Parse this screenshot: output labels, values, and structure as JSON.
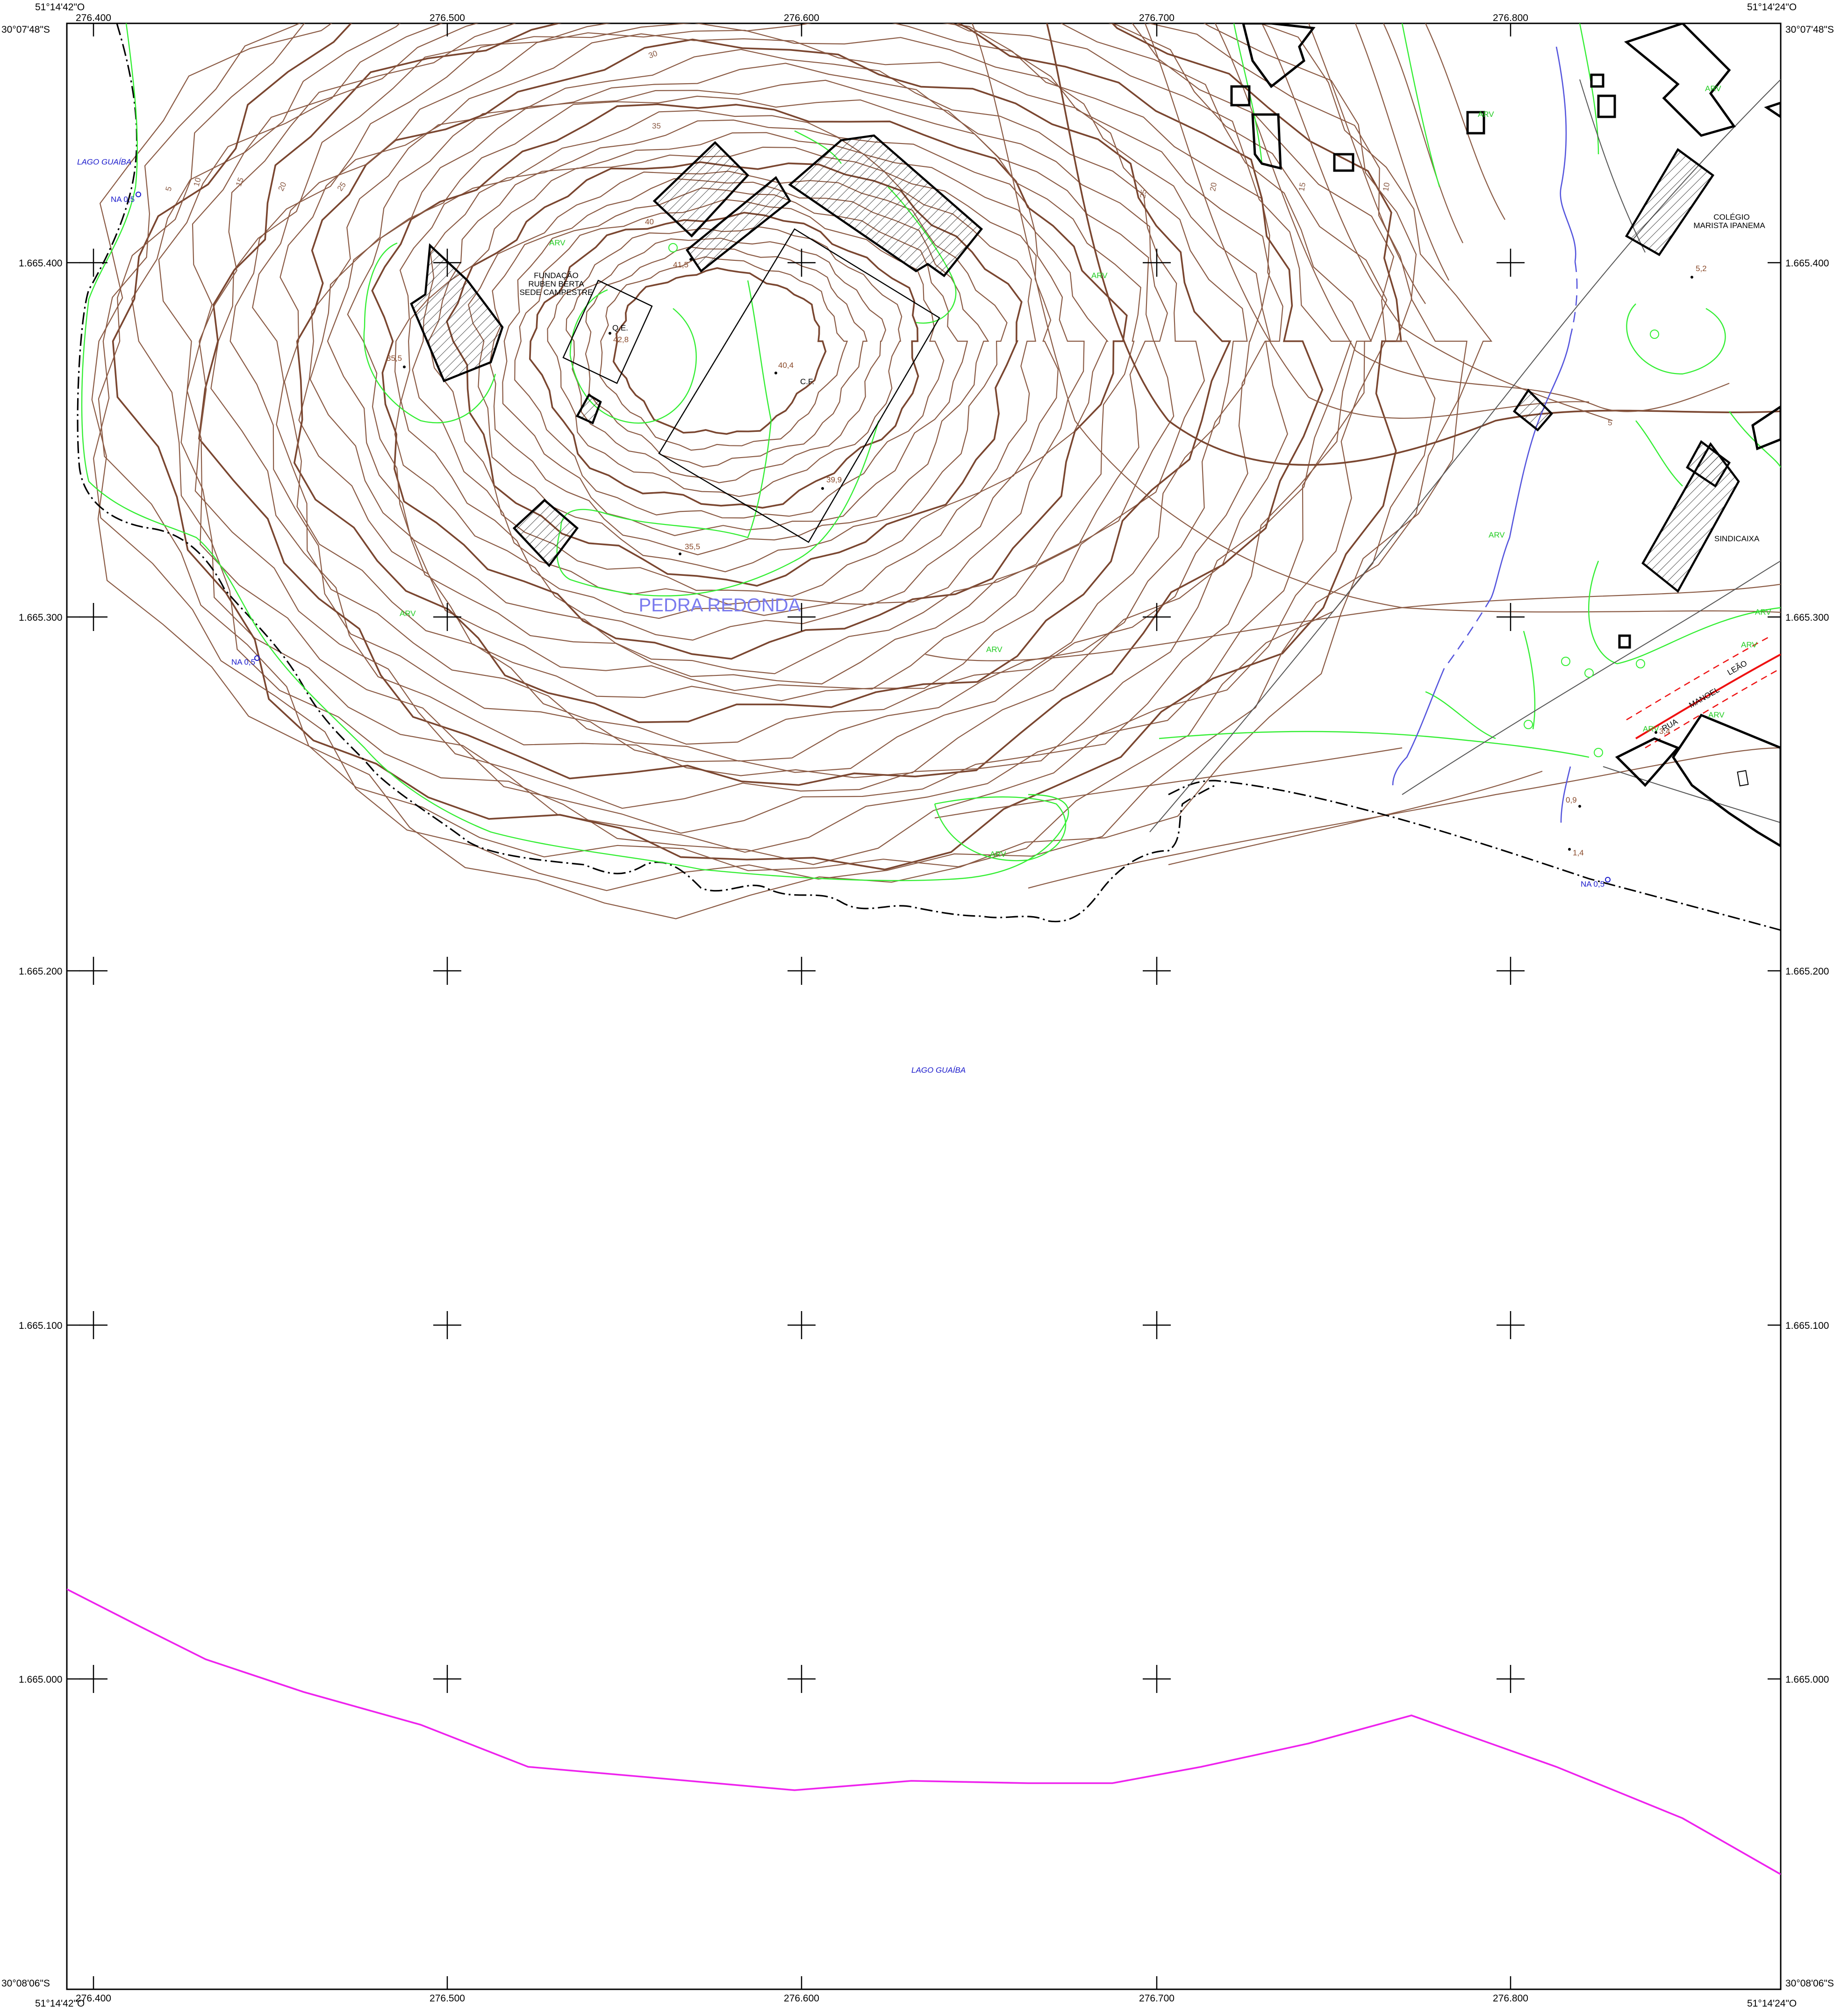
{
  "map": {
    "place_name": "PEDRA REDONDA",
    "corners": {
      "top_left_lon": "51°14'42\"O",
      "top_left_lat": "30°07'48\"S",
      "top_right_lon": "51°14'24\"O",
      "top_right_lat": "30°07'48\"S",
      "bottom_left_lat": "30°08'06\"S",
      "bottom_left_lon": "51°14'42\"O",
      "bottom_right_lat": "30°08'06\"S",
      "bottom_right_lon": "51°14'24\"O"
    },
    "grid_x_labels": [
      "276.400",
      "276.500",
      "276.600",
      "276.700",
      "276.800"
    ],
    "grid_y_labels": [
      "1.665.400",
      "1.665.300",
      "1.665.200",
      "1.665.100",
      "1.665.000"
    ],
    "water_labels": {
      "lake_nw": "LAGO GUAÍBA",
      "lake_center": "LAGO GUAÍBA",
      "na_nw": "NA 0,5",
      "na_w": "NA 0,5",
      "na_se": "NA 0,5"
    },
    "feature_labels": {
      "fundacao_1": "FUNDAÇÃO",
      "fundacao_2": "RUBEN BERTA",
      "fundacao_3": "SEDE CAMPESTRE",
      "qe": "Q.E.",
      "cf": "C.F.",
      "colegio_1": "COLÉGIO",
      "colegio_2": "MARISTA IPANEMA",
      "sindicaixa": "SINDICAIXA",
      "rua_1": "RUA",
      "rua_2": "MANOEL",
      "rua_3": "LEÃO"
    },
    "vegetation_label": "ARV",
    "spot_heights": {
      "s41_5": "41,5",
      "s40": "40",
      "s42_8": "42,8",
      "s40_4": "40,4",
      "s35_5_w": "35,5",
      "s39_9": "39,9",
      "s35_5_s": "35,5",
      "s5_2": "5,2",
      "s0_9": "0,9",
      "s1_4": "1,4",
      "s3_4": "3,4"
    },
    "contour_labels": {
      "c5": "5",
      "c10": "10",
      "c15": "15",
      "c20": "20",
      "c25": "25",
      "c30": "30",
      "c35": "35",
      "c10b": "10",
      "c15b": "15",
      "c20b": "20",
      "c25b": "25",
      "c5b": "5"
    },
    "colors": {
      "contour": "#8a5a44",
      "vegetation": "#33ee33",
      "water_label": "#1a1acc",
      "stream": "#5555dd",
      "road": "#ee1111",
      "boundary": "#ee22ee",
      "place_name": "#7a7aee"
    }
  }
}
